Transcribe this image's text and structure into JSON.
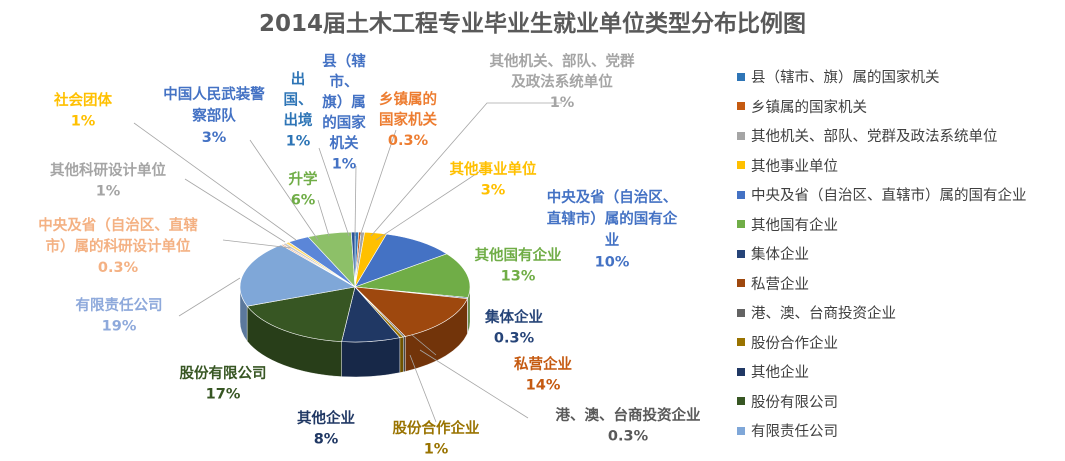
{
  "chart_data": {
    "type": "pie",
    "title": "2014届土木工程专业毕业生就业单位类型分布比例图",
    "series": [
      {
        "name": "县（辖市、旗）属的国家机关",
        "callout": [
          "县（辖",
          "市、",
          "旗）属",
          "的国家",
          "机关"
        ],
        "value_label": "1%",
        "value": 0.5,
        "color": "#2E75B6",
        "label_color": "#4472C4"
      },
      {
        "name": "乡镇属的国家机关",
        "callout": [
          "乡镇属的",
          "国家机关"
        ],
        "value_label": "0.3%",
        "value": 0.3,
        "color": "#C55A11",
        "label_color": "#ED7D31"
      },
      {
        "name": "其他机关、部队、党群及政法系统单位",
        "callout": [
          "其他机关、部队、党群",
          "及政法系统单位"
        ],
        "value_label": "1%",
        "value": 0.5,
        "color": "#A5A5A5",
        "label_color": "#A5A5A5"
      },
      {
        "name": "其他事业单位",
        "callout": [
          "其他事业单位"
        ],
        "value_label": "3%",
        "value": 3,
        "color": "#FFC000",
        "label_color": "#FFC000"
      },
      {
        "name": "中央及省（自治区、直辖市）属的国有企业",
        "callout": [
          "中央及省（自治区、",
          "直辖市）属的国有企",
          "业"
        ],
        "value_label": "10%",
        "value": 10,
        "color": "#4472C4",
        "label_color": "#4472C4"
      },
      {
        "name": "其他国有企业",
        "callout": [
          "其他国有企业"
        ],
        "value_label": "13%",
        "value": 13,
        "color": "#70AD47",
        "label_color": "#70AD47"
      },
      {
        "name": "集体企业",
        "callout": [
          "集体企业"
        ],
        "value_label": "0.3%",
        "value": 0.3,
        "color": "#264478",
        "label_color": "#264478"
      },
      {
        "name": "私营企业",
        "callout": [
          "私营企业"
        ],
        "value_label": "14%",
        "value": 14,
        "color": "#9E480E",
        "label_color": "#C55A11"
      },
      {
        "name": "港、澳、台商投资企业",
        "callout": [
          "港、澳、台商投资企业"
        ],
        "value_label": "0.3%",
        "value": 0.3,
        "color": "#636363",
        "label_color": "#595959"
      },
      {
        "name": "股份合作企业",
        "callout": [
          "股份合作企业"
        ],
        "value_label": "1%",
        "value": 0.5,
        "color": "#997300",
        "label_color": "#997300"
      },
      {
        "name": "其他企业",
        "callout": [
          "其他企业"
        ],
        "value_label": "8%",
        "value": 8,
        "color": "#203864",
        "label_color": "#203864"
      },
      {
        "name": "股份有限公司",
        "callout": [
          "股份有限公司"
        ],
        "value_label": "17%",
        "value": 17,
        "color": "#375623",
        "label_color": "#375623"
      },
      {
        "name": "有限责任公司",
        "callout": [
          "有限责任公司"
        ],
        "value_label": "19%",
        "value": 19,
        "color": "#7FA7D8",
        "label_color": "#8EA9DB"
      },
      {
        "name": "中央及省（自治区、直辖市）属的科研设计单位",
        "callout": [
          "中央及省（自治区、直辖",
          "市）属的科研设计单位"
        ],
        "value_label": "0.3%",
        "value": 0.3,
        "color": "#F4B183",
        "label_color": "#F4B183"
      },
      {
        "name": "其他科研设计单位",
        "callout": [
          "其他科研设计单位"
        ],
        "value_label": "1%",
        "value": 0.5,
        "color": "#C9C9C9",
        "label_color": "#A5A5A5"
      },
      {
        "name": "社会团体",
        "callout": [
          "社会团体"
        ],
        "value_label": "1%",
        "value": 0.5,
        "color": "#FFD966",
        "label_color": "#FFC000"
      },
      {
        "name": "中国人民武装警察部队",
        "callout": [
          "中国人民武装警",
          "察部队"
        ],
        "value_label": "3%",
        "value": 3,
        "color": "#5B86D8",
        "label_color": "#4472C4"
      },
      {
        "name": "升学",
        "callout": [
          "升学"
        ],
        "value_label": "6%",
        "value": 6,
        "color": "#8DC068",
        "label_color": "#70AD47"
      },
      {
        "name": "出国、出境",
        "callout": [
          "出",
          "国、",
          "出境"
        ],
        "value_label": "1%",
        "value": 0.5,
        "color": "#2F5597",
        "label_color": "#2E75B6"
      }
    ],
    "legend_position": "right",
    "legend_series_count": 13
  }
}
